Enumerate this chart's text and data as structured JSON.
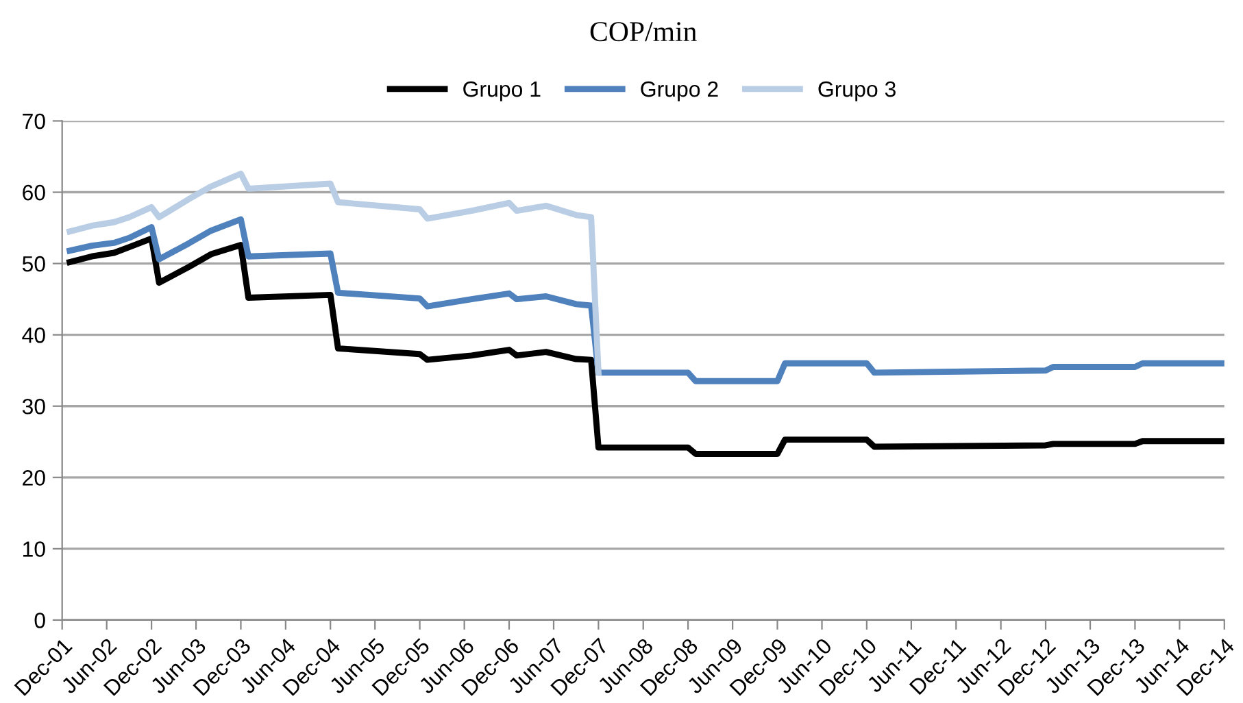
{
  "chart_data": {
    "type": "line",
    "title": "COP/min",
    "legend": "top",
    "grid": "y",
    "marker": "none",
    "line_style": "solid",
    "xlim": [
      "2001-12",
      "2014-12"
    ],
    "ylim": [
      0,
      70
    ],
    "yticks": [
      0,
      10,
      20,
      30,
      40,
      50,
      60,
      70
    ],
    "xticks": [
      {
        "value": "2001-12",
        "label": "Dec-01"
      },
      {
        "value": "2002-06",
        "label": "Jun-02"
      },
      {
        "value": "2002-12",
        "label": "Dec-02"
      },
      {
        "value": "2003-06",
        "label": "Jun-03"
      },
      {
        "value": "2003-12",
        "label": "Dec-03"
      },
      {
        "value": "2004-06",
        "label": "Jun-04"
      },
      {
        "value": "2004-12",
        "label": "Dec-04"
      },
      {
        "value": "2005-06",
        "label": "Jun-05"
      },
      {
        "value": "2005-12",
        "label": "Dec-05"
      },
      {
        "value": "2006-06",
        "label": "Jun-06"
      },
      {
        "value": "2006-12",
        "label": "Dec-06"
      },
      {
        "value": "2007-06",
        "label": "Jun-07"
      },
      {
        "value": "2007-12",
        "label": "Dec-07"
      },
      {
        "value": "2008-06",
        "label": "Jun-08"
      },
      {
        "value": "2008-12",
        "label": "Dec-08"
      },
      {
        "value": "2009-06",
        "label": "Jun-09"
      },
      {
        "value": "2009-12",
        "label": "Dec-09"
      },
      {
        "value": "2010-06",
        "label": "Jun-10"
      },
      {
        "value": "2010-12",
        "label": "Dec-10"
      },
      {
        "value": "2011-06",
        "label": "Jun-11"
      },
      {
        "value": "2011-12",
        "label": "Dec-11"
      },
      {
        "value": "2012-06",
        "label": "Jun-12"
      },
      {
        "value": "2012-12",
        "label": "Dec-12"
      },
      {
        "value": "2013-06",
        "label": "Jun-13"
      },
      {
        "value": "2013-12",
        "label": "Dec-13"
      },
      {
        "value": "2014-06",
        "label": "Jun-14"
      },
      {
        "value": "2014-12",
        "label": "Dec-14"
      }
    ],
    "series": [
      {
        "name": "Grupo 1",
        "color": "#000000",
        "x": [
          "2002-01",
          "2002-04",
          "2002-07",
          "2002-09",
          "2002-12",
          "2003-01",
          "2003-05",
          "2003-08",
          "2003-12",
          "2004-01",
          "2004-12",
          "2005-01",
          "2005-12",
          "2006-01",
          "2006-07",
          "2006-12",
          "2007-01",
          "2007-05",
          "2007-09",
          "2007-11",
          "2007-12",
          "2008-12",
          "2009-01",
          "2009-12",
          "2010-01",
          "2010-12",
          "2011-01",
          "2012-12",
          "2013-01",
          "2013-12",
          "2014-01",
          "2014-12"
        ],
        "values": [
          50.2,
          51.0,
          51.5,
          52.3,
          53.5,
          47.3,
          49.5,
          51.3,
          52.6,
          45.2,
          45.6,
          38.1,
          37.3,
          36.5,
          37.1,
          37.9,
          37.1,
          37.6,
          36.6,
          36.5,
          24.2,
          24.2,
          23.3,
          23.3,
          25.3,
          25.3,
          24.3,
          24.5,
          24.7,
          24.7,
          25.1,
          25.1
        ]
      },
      {
        "name": "Grupo 2",
        "color": "#4f81bd",
        "x": [
          "2002-01",
          "2002-04",
          "2002-07",
          "2002-09",
          "2002-12",
          "2003-01",
          "2003-05",
          "2003-08",
          "2003-12",
          "2004-01",
          "2004-12",
          "2005-01",
          "2005-12",
          "2006-01",
          "2006-07",
          "2006-12",
          "2007-01",
          "2007-05",
          "2007-09",
          "2007-11",
          "2007-12",
          "2008-12",
          "2009-01",
          "2009-12",
          "2010-01",
          "2010-12",
          "2011-01",
          "2012-12",
          "2013-01",
          "2013-12",
          "2014-01",
          "2014-12"
        ],
        "values": [
          51.8,
          52.5,
          52.9,
          53.6,
          55.1,
          50.6,
          52.8,
          54.6,
          56.2,
          51.0,
          51.4,
          45.9,
          45.1,
          44.0,
          45.0,
          45.8,
          45.0,
          45.4,
          44.3,
          44.1,
          34.7,
          34.7,
          33.5,
          33.5,
          36.0,
          36.0,
          34.7,
          35.0,
          35.5,
          35.5,
          36.0,
          36.0
        ]
      },
      {
        "name": "Grupo 3",
        "color": "#b9cde5",
        "x": [
          "2002-01",
          "2002-04",
          "2002-07",
          "2002-09",
          "2002-12",
          "2003-01",
          "2003-05",
          "2003-08",
          "2003-12",
          "2004-01",
          "2004-12",
          "2005-01",
          "2005-12",
          "2006-01",
          "2006-07",
          "2006-12",
          "2007-01",
          "2007-05",
          "2007-09",
          "2007-11",
          "2007-12"
        ],
        "values": [
          54.5,
          55.3,
          55.8,
          56.5,
          57.9,
          56.5,
          59.0,
          60.8,
          62.6,
          60.5,
          61.2,
          58.6,
          57.6,
          56.3,
          57.4,
          58.5,
          57.4,
          58.1,
          56.8,
          56.5,
          34.7
        ]
      }
    ]
  }
}
